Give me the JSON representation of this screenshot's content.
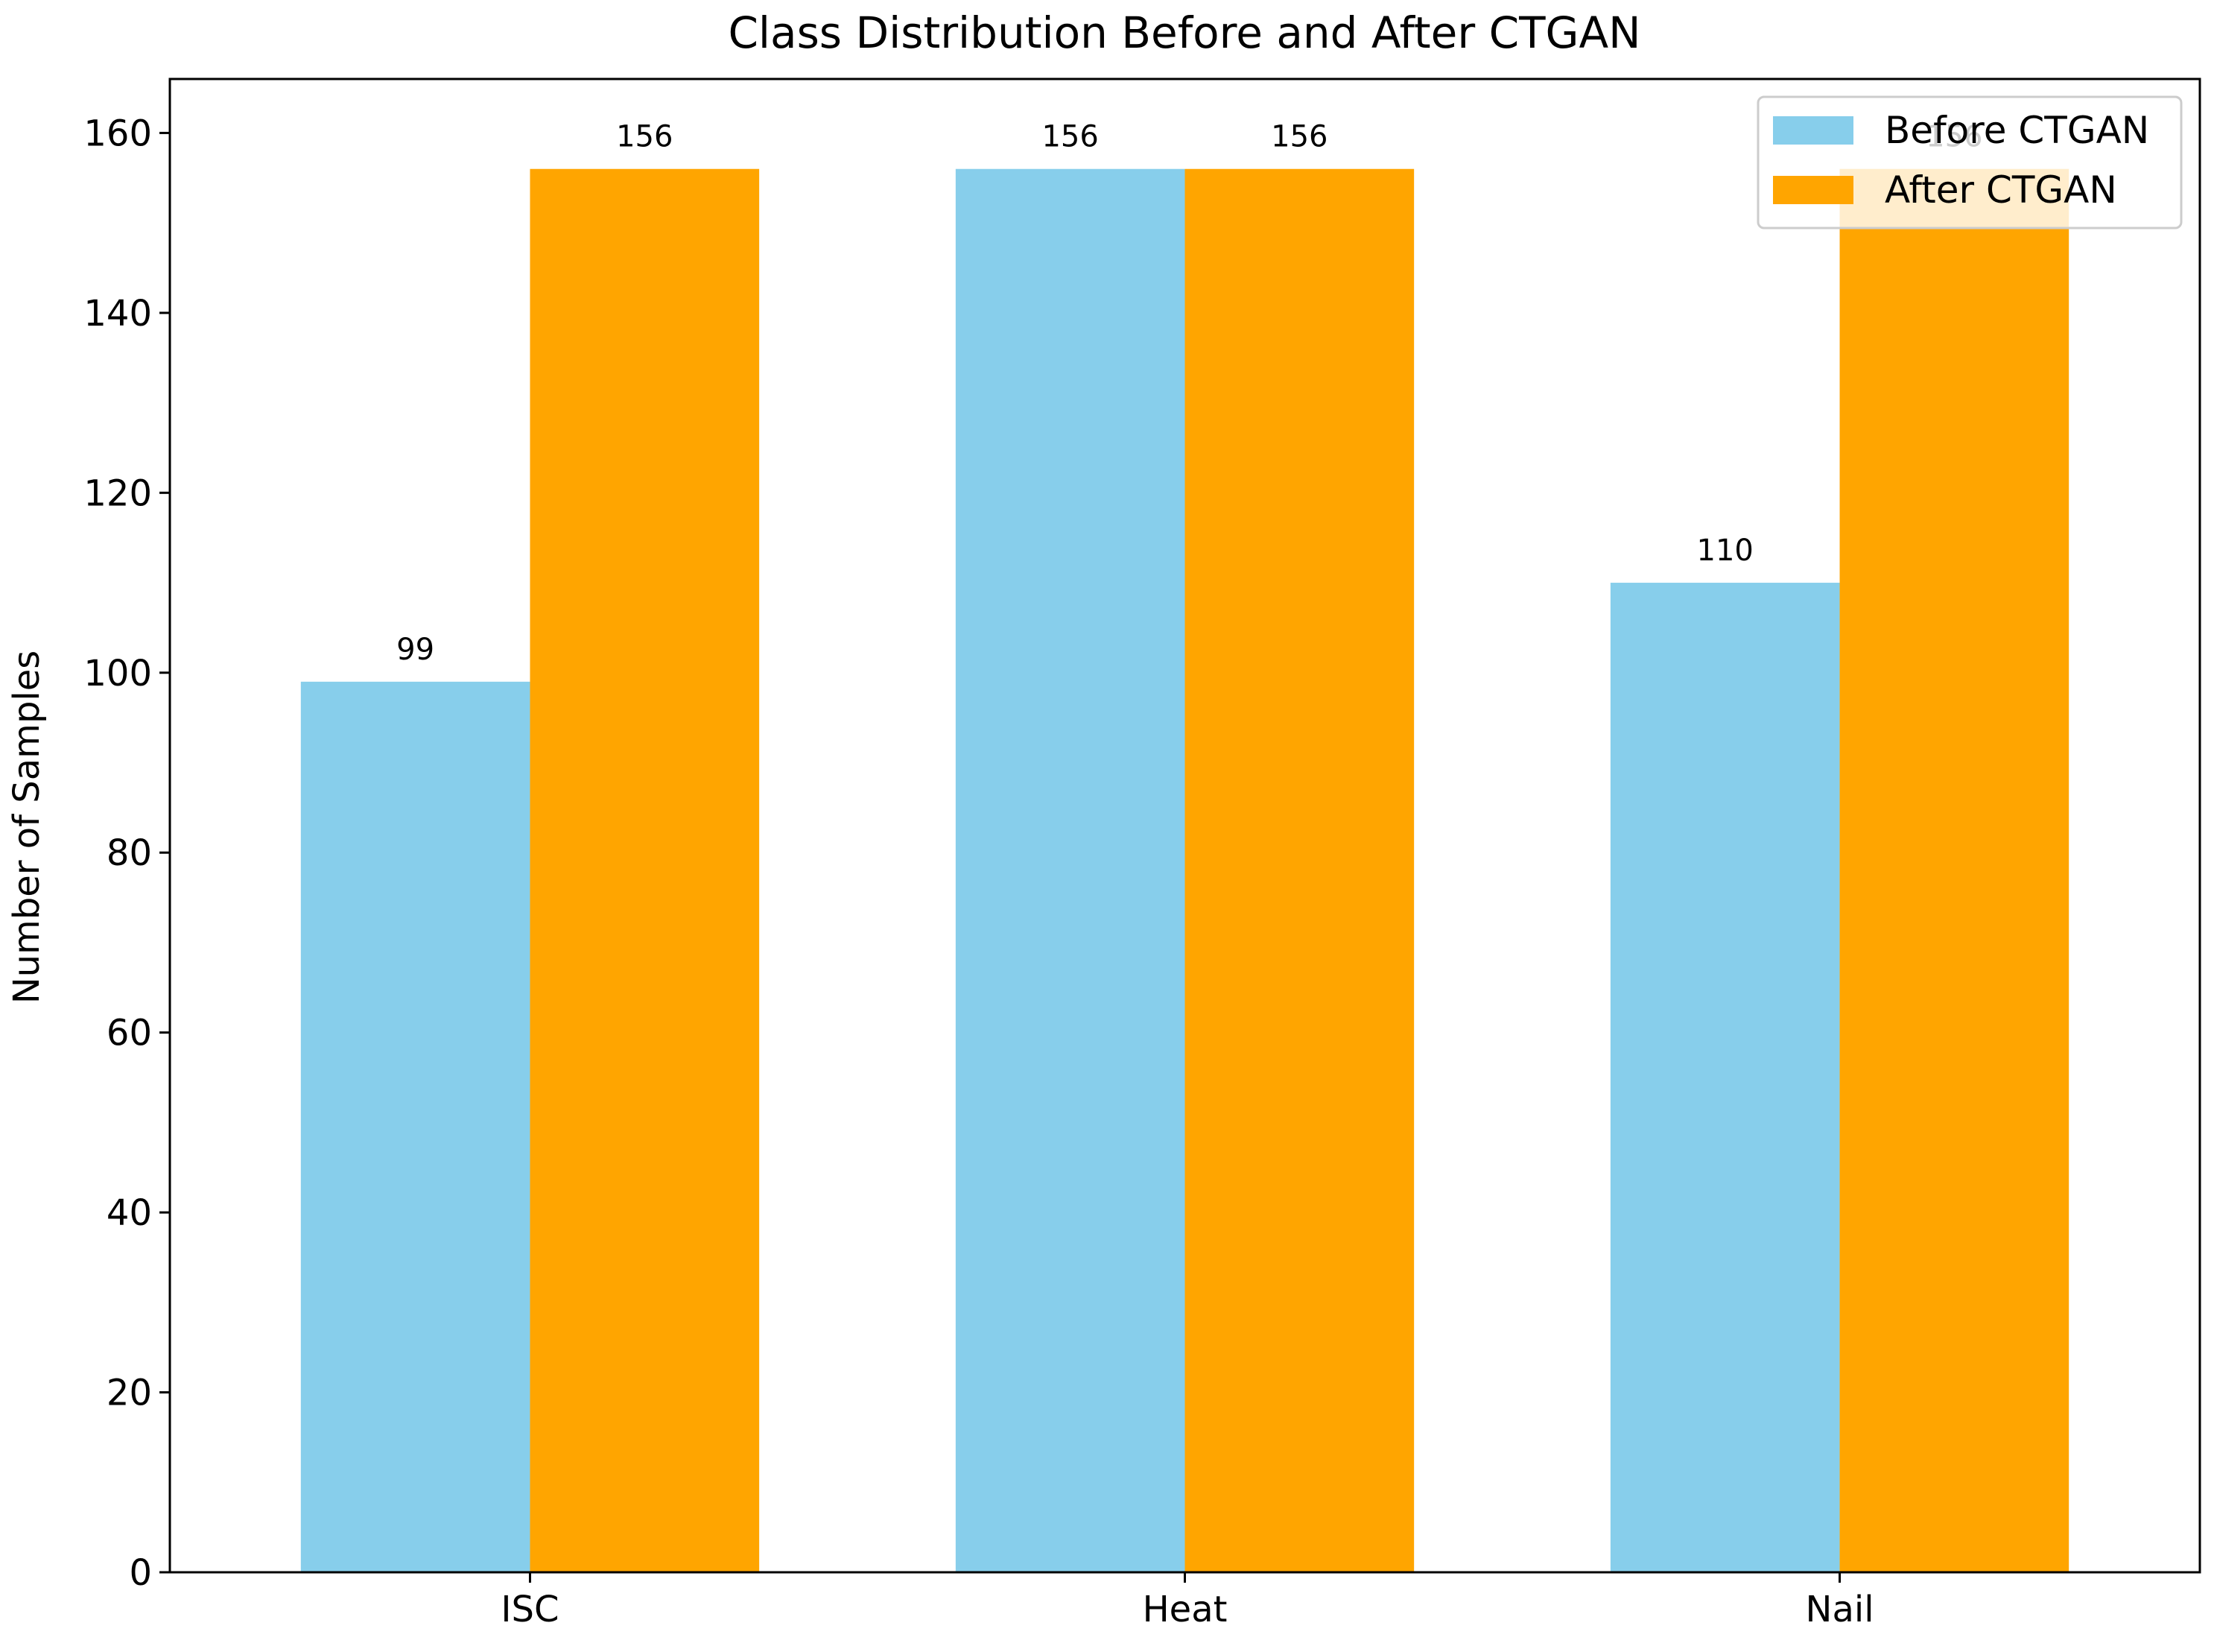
{
  "chart_data": {
    "type": "bar",
    "title": "Class Distribution Before and After CTGAN",
    "xlabel": "",
    "ylabel": "Number of Samples",
    "categories": [
      "ISC",
      "Heat",
      "Nail"
    ],
    "series": [
      {
        "name": "Before CTGAN",
        "color": "#87CEEB",
        "values": [
          99,
          156,
          110
        ]
      },
      {
        "name": "After CTGAN",
        "color": "#FFA500",
        "values": [
          156,
          156,
          156
        ]
      }
    ],
    "ylim": [
      0,
      160
    ],
    "yticks": [
      0,
      20,
      40,
      60,
      80,
      100,
      120,
      140,
      160
    ],
    "grid": false,
    "legend_position": "top-right",
    "data_labels": true
  }
}
